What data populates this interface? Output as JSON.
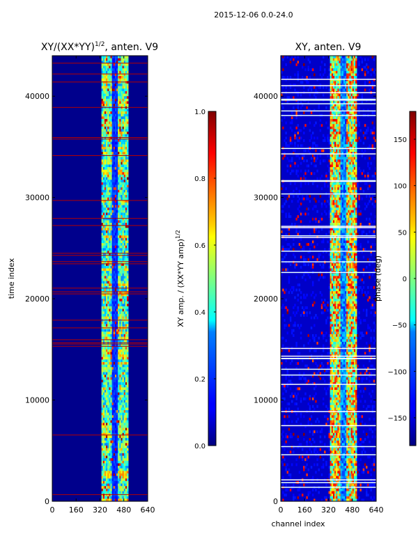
{
  "suptitle": "2015-12-06 0.0-24.0",
  "x_label_shared": "channel index",
  "chart_data": [
    {
      "type": "heatmap",
      "title": "XY/(XX*YY)",
      "title_exp": "1/2",
      "title_suffix": ", anten. V9",
      "xlabel": "",
      "ylabel": "time index",
      "xlim": [
        0,
        640
      ],
      "ylim": [
        0,
        44000
      ],
      "xticks": [
        "0",
        "160",
        "320",
        "480",
        "640"
      ],
      "yticks": [
        "0",
        "10000",
        "20000",
        "30000",
        "40000"
      ],
      "xtick_values": [
        0,
        160,
        320,
        480,
        640
      ],
      "ytick_values": [
        0,
        10000,
        20000,
        30000,
        40000
      ],
      "colorbar": {
        "label": "XY amp. / (XX*YY amp)",
        "label_exp": "1/2",
        "range": [
          0.0,
          1.0
        ],
        "ticks": [
          "0.0",
          "0.2",
          "0.4",
          "0.6",
          "0.8",
          "1.0"
        ],
        "tick_values": [
          0.0,
          0.2,
          0.4,
          0.6,
          0.8,
          1.0
        ]
      },
      "colormap": "jet"
    },
    {
      "type": "heatmap",
      "title": "XY, anten. V9",
      "xlabel": "channel index",
      "ylabel": "",
      "xlim": [
        0,
        640
      ],
      "ylim": [
        0,
        44000
      ],
      "xticks": [
        "0",
        "160",
        "320",
        "480",
        "640"
      ],
      "yticks": [
        "0",
        "10000",
        "20000",
        "30000",
        "40000"
      ],
      "xtick_values": [
        0,
        160,
        320,
        480,
        640
      ],
      "ytick_values": [
        0,
        10000,
        20000,
        30000,
        40000
      ],
      "colorbar": {
        "label": "phase (deg)",
        "range": [
          -180,
          180
        ],
        "ticks": [
          "−150",
          "−100",
          "−50",
          "0",
          "50",
          "100",
          "150"
        ],
        "tick_values": [
          -150,
          -100,
          -50,
          0,
          50,
          100,
          150
        ]
      },
      "colormap": "jet"
    }
  ]
}
